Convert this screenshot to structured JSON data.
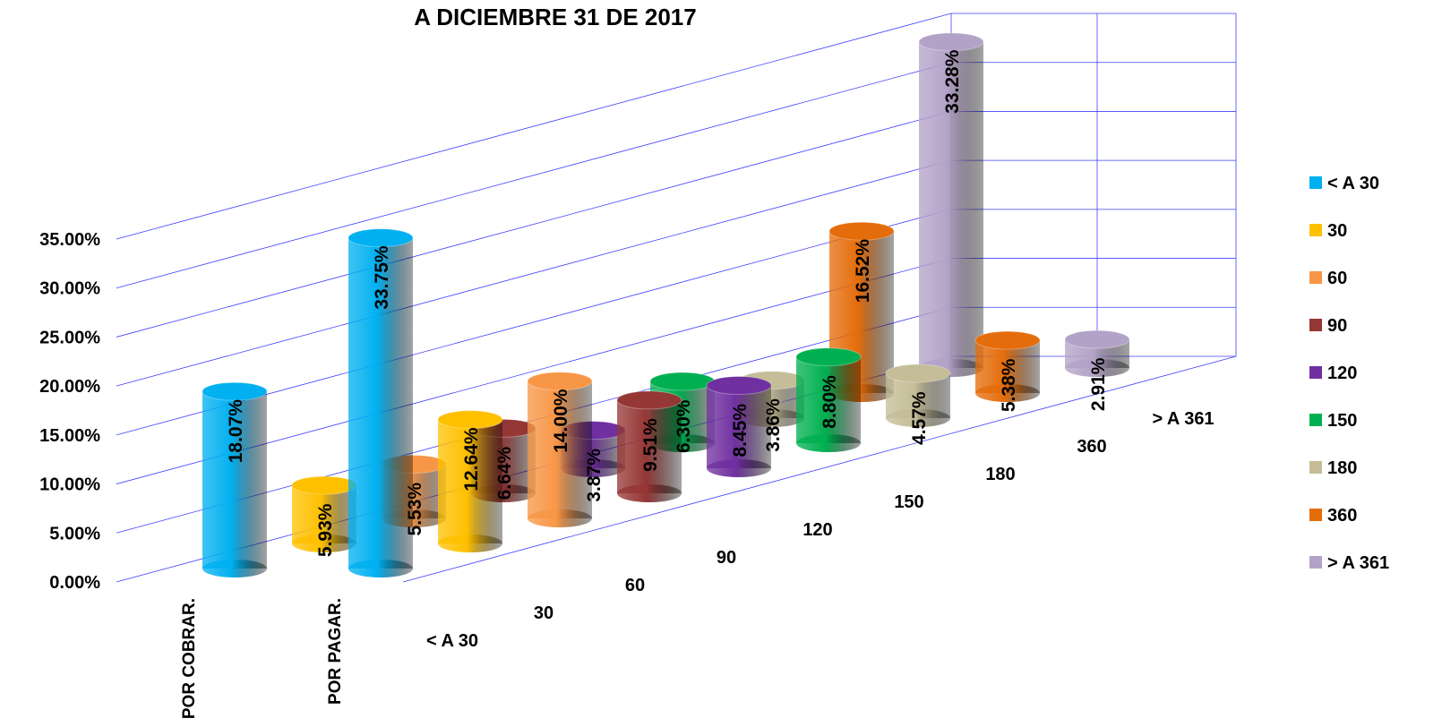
{
  "chart_data": {
    "type": "bar3d",
    "title": "A DICIEMBRE 31 DE 2017",
    "categories": [
      "POR COBRAR.",
      "POR PAGAR."
    ],
    "series": [
      {
        "name": "< A 30",
        "color": "#00b0f0",
        "values": [
          18.07,
          33.75
        ],
        "value_labels": [
          "18.07%",
          "33.75%"
        ]
      },
      {
        "name": "30",
        "color": "#ffc000",
        "values": [
          5.93,
          12.64
        ],
        "value_labels": [
          "5.93%",
          "12.64%"
        ]
      },
      {
        "name": "60",
        "color": "#f79646",
        "values": [
          5.53,
          14.0
        ],
        "value_labels": [
          "5.53%",
          "14.00%"
        ]
      },
      {
        "name": "90",
        "color": "#953735",
        "values": [
          6.64,
          9.51
        ],
        "value_labels": [
          "6.64%",
          "9.51%"
        ]
      },
      {
        "name": "120",
        "color": "#7030a0",
        "values": [
          3.87,
          8.45
        ],
        "value_labels": [
          "3.87%",
          "8.45%"
        ]
      },
      {
        "name": "150",
        "color": "#00b050",
        "values": [
          6.3,
          8.8
        ],
        "value_labels": [
          "6.30%",
          "8.80%"
        ]
      },
      {
        "name": "180",
        "color": "#c4bd97",
        "values": [
          3.86,
          4.57
        ],
        "value_labels": [
          "3.86%",
          "4.57%"
        ]
      },
      {
        "name": "360",
        "color": "#e46c0a",
        "values": [
          16.52,
          5.38
        ],
        "value_labels": [
          "16.52%",
          "5.38%"
        ]
      },
      {
        "name": "> A 361",
        "color": "#b3a2c7",
        "values": [
          33.28,
          2.91
        ],
        "value_labels": [
          "33.28%",
          "2.91%"
        ]
      }
    ],
    "ylim": [
      0,
      35
    ],
    "yticks": [
      {
        "value": 0,
        "label": "0.00%"
      },
      {
        "value": 5,
        "label": "5.00%"
      },
      {
        "value": 10,
        "label": "10.00%"
      },
      {
        "value": 15,
        "label": "15.00%"
      },
      {
        "value": 20,
        "label": "20.00%"
      },
      {
        "value": 25,
        "label": "25.00%"
      },
      {
        "value": 30,
        "label": "30.00%"
      },
      {
        "value": 35,
        "label": "35.00%"
      }
    ],
    "grid": true,
    "legend": "right"
  }
}
